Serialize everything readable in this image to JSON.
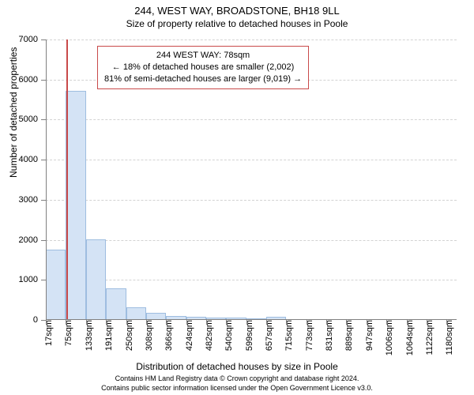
{
  "title": "244, WEST WAY, BROADSTONE, BH18 9LL",
  "subtitle": "Size of property relative to detached houses in Poole",
  "y_axis_label": "Number of detached properties",
  "x_axis_label": "Distribution of detached houses by size in Poole",
  "footer1": "Contains HM Land Registry data © Crown copyright and database right 2024.",
  "footer2": "Contains public sector information licensed under the Open Government Licence v3.0.",
  "annotation": {
    "line1": "244 WEST WAY: 78sqm",
    "line2": "← 18% of detached houses are smaller (2,002)",
    "line3": "81% of semi-detached houses are larger (9,019) →"
  },
  "chart": {
    "type": "histogram",
    "x_data_min": 17,
    "x_data_max": 1209,
    "y_max": 7000,
    "y_tick_step": 1000,
    "x_ticks": [
      17,
      75,
      133,
      191,
      250,
      308,
      366,
      424,
      482,
      540,
      599,
      657,
      715,
      773,
      831,
      889,
      947,
      1006,
      1064,
      1122,
      1180
    ],
    "x_tick_suffix": "sqm",
    "bars": [
      {
        "x_start": 17,
        "x_end": 75,
        "value": 1760
      },
      {
        "x_start": 75,
        "x_end": 133,
        "value": 5720
      },
      {
        "x_start": 133,
        "x_end": 191,
        "value": 2020
      },
      {
        "x_start": 191,
        "x_end": 250,
        "value": 790
      },
      {
        "x_start": 250,
        "x_end": 308,
        "value": 310
      },
      {
        "x_start": 308,
        "x_end": 366,
        "value": 180
      },
      {
        "x_start": 366,
        "x_end": 424,
        "value": 100
      },
      {
        "x_start": 424,
        "x_end": 482,
        "value": 70
      },
      {
        "x_start": 482,
        "x_end": 540,
        "value": 50
      },
      {
        "x_start": 540,
        "x_end": 599,
        "value": 60
      },
      {
        "x_start": 599,
        "x_end": 657,
        "value": 30
      },
      {
        "x_start": 657,
        "x_end": 715,
        "value": 70
      }
    ],
    "marker_x": 78,
    "bar_fill": "#d4e3f5",
    "bar_border": "#9ebde0",
    "marker_color": "#c94a4a",
    "grid_color": "#b0b0b0",
    "background_color": "#ffffff",
    "tick_fontsize": 11,
    "label_fontsize": 12
  }
}
